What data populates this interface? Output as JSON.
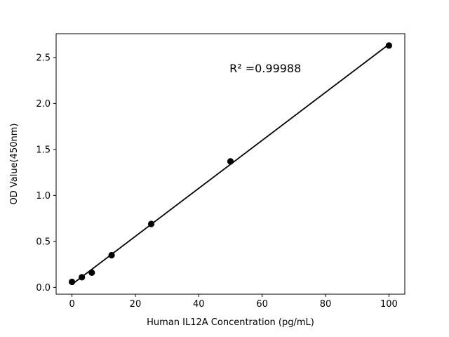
{
  "figure": {
    "background": "#ffffff",
    "foreground": "#000000"
  },
  "chart_data": {
    "type": "scatter",
    "title": "",
    "xlabel": "Human IL12A Concentration (pg/mL)",
    "ylabel": "OD Value(450nm)",
    "annotation": "R² =0.99988",
    "x": [
      0,
      3.125,
      6.25,
      12.5,
      25,
      50,
      100
    ],
    "y": [
      0.06,
      0.11,
      0.16,
      0.35,
      0.69,
      1.37,
      2.63
    ],
    "xticks": [
      0,
      20,
      40,
      60,
      80,
      100
    ],
    "yticks": [
      0.0,
      0.5,
      1.0,
      1.5,
      2.0,
      2.5
    ],
    "xlim": [
      -5,
      105
    ],
    "ylim": [
      -0.074,
      2.759
    ],
    "marker_color": "#000000",
    "line_color": "#000000",
    "grid": false,
    "legend": null,
    "annotation_position": {
      "x_frac": 0.6,
      "y_frac": 0.148
    }
  }
}
